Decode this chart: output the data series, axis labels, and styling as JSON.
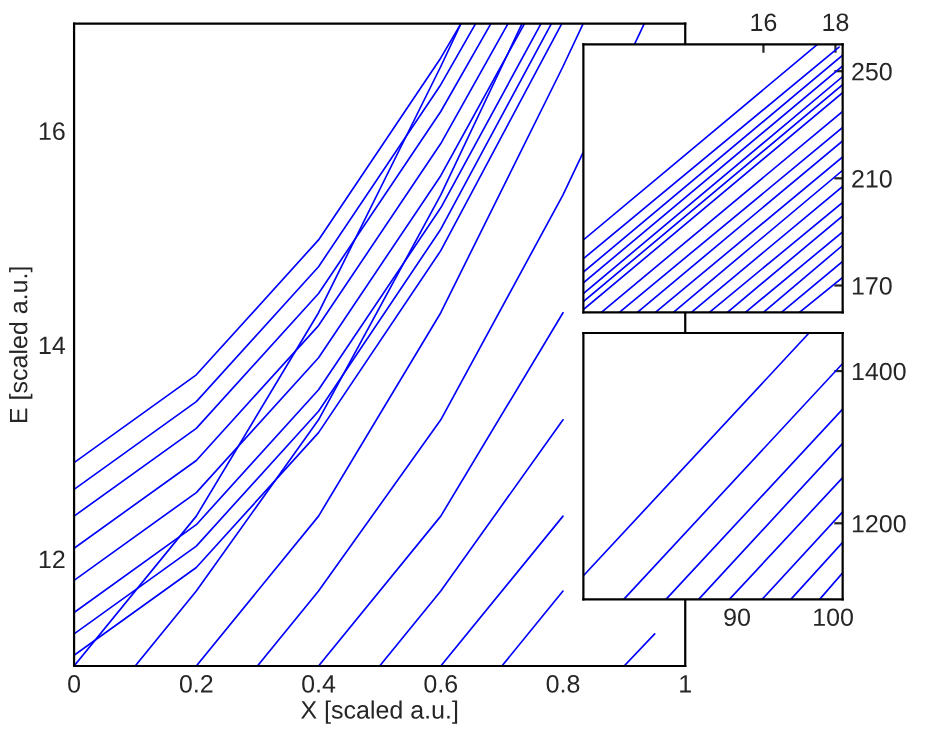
{
  "chart_data": [
    {
      "type": "line",
      "xlabel": "X [scaled a.u.]",
      "ylabel": "E [scaled a.u.]",
      "xlim": [
        0,
        1
      ],
      "ylim": [
        11,
        17
      ],
      "xticks": [
        0,
        0.2,
        0.4,
        0.6,
        0.8,
        1
      ],
      "yticks": [
        12,
        14,
        16
      ],
      "grid": false,
      "legend": false,
      "line_style": "solid",
      "series": [
        {
          "color": "#0000ff",
          "x": [
            0,
            0.2,
            0.4,
            0.6,
            0.633
          ],
          "values": [
            12.9,
            13.72,
            14.98,
            16.68,
            17
          ]
        },
        {
          "color": "#0000ff",
          "x": [
            0,
            0.2,
            0.4,
            0.6,
            0.657
          ],
          "values": [
            12.65,
            13.47,
            14.73,
            16.43,
            17
          ]
        },
        {
          "color": "#0000ff",
          "x": [
            0,
            0.2,
            0.4,
            0.6,
            0.682
          ],
          "values": [
            12.4,
            13.22,
            14.48,
            16.18,
            17
          ]
        },
        {
          "color": "#0000ff",
          "x": [
            0,
            0.2,
            0.4,
            0.6,
            0.71
          ],
          "values": [
            12.1,
            12.92,
            14.18,
            15.88,
            17
          ]
        },
        {
          "color": "#0000ff",
          "x": [
            0,
            0.2,
            0.4,
            0.6,
            0.737
          ],
          "values": [
            11.8,
            12.62,
            13.88,
            15.58,
            17
          ]
        },
        {
          "color": "#0000ff",
          "x": [
            0,
            0.2,
            0.4,
            0.6,
            0.764
          ],
          "values": [
            11.5,
            12.32,
            13.58,
            15.28,
            17
          ]
        },
        {
          "color": "#0000ff",
          "x": [
            0,
            0.2,
            0.4,
            0.6,
            0.781
          ],
          "values": [
            11.3,
            12.12,
            13.38,
            15.08,
            17
          ]
        },
        {
          "color": "#0000ff",
          "x": [
            0,
            0.2,
            0.4,
            0.6,
            0.798
          ],
          "values": [
            11.1,
            11.92,
            13.18,
            14.88,
            17
          ]
        },
        {
          "color": "#0000ff",
          "x": [
            0,
            0.2,
            0.4,
            0.6,
            0.633
          ],
          "values": [
            11,
            12.4,
            14.3,
            16.6,
            17
          ]
        },
        {
          "color": "#0000ff",
          "x": [
            0.1,
            0.2,
            0.4,
            0.6,
            0.733
          ],
          "values": [
            11,
            11.7,
            13.3,
            15.4,
            17
          ]
        },
        {
          "color": "#0000ff",
          "x": [
            0.2,
            0.4,
            0.6,
            0.8,
            0.833
          ],
          "values": [
            11,
            12.4,
            14.3,
            16.6,
            17
          ]
        },
        {
          "color": "#0000ff",
          "x": [
            0.3,
            0.4,
            0.6,
            0.8,
            0.933
          ],
          "values": [
            11,
            11.7,
            13.3,
            15.4,
            17
          ]
        },
        {
          "color": "#0000ff",
          "x": [
            0.4,
            0.6,
            0.8
          ],
          "values": [
            11,
            12.4,
            14.3
          ]
        },
        {
          "color": "#0000ff",
          "x": [
            0.5,
            0.6,
            0.8
          ],
          "values": [
            11,
            11.7,
            13.3
          ]
        },
        {
          "color": "#0000ff",
          "x": [
            0.6,
            0.8
          ],
          "values": [
            11,
            12.4
          ]
        },
        {
          "color": "#0000ff",
          "x": [
            0.7,
            0.8
          ],
          "values": [
            11,
            11.7
          ]
        },
        {
          "color": "#0000ff",
          "x": [
            0.9,
            0.95
          ],
          "values": [
            11,
            11.3
          ]
        }
      ]
    },
    {
      "type": "line",
      "xlim": [
        11,
        18.2
      ],
      "ylim": [
        160,
        260
      ],
      "xticks": [
        16,
        18
      ],
      "yticks": [
        170,
        210,
        250
      ],
      "grid": false,
      "legend": false,
      "line_style": "solid",
      "series": [
        {
          "color": "#0000ff",
          "x": [
            11,
            17.5
          ],
          "values": [
            187,
            260
          ]
        },
        {
          "color": "#0000ff",
          "x": [
            11,
            18.1
          ],
          "values": [
            180,
            259
          ]
        },
        {
          "color": "#0000ff",
          "x": [
            11,
            18.2
          ],
          "values": [
            175,
            256
          ]
        },
        {
          "color": "#0000ff",
          "x": [
            11,
            18.2
          ],
          "values": [
            171,
            252
          ]
        },
        {
          "color": "#0000ff",
          "x": [
            11,
            18.2
          ],
          "values": [
            167,
            248
          ]
        },
        {
          "color": "#0000ff",
          "x": [
            11,
            18.2
          ],
          "values": [
            164,
            245
          ]
        },
        {
          "color": "#0000ff",
          "x": [
            11,
            18.2
          ],
          "values": [
            161,
            242
          ]
        },
        {
          "color": "#0000ff",
          "x": [
            11.5,
            18.2
          ],
          "values": [
            160,
            235
          ]
        },
        {
          "color": "#0000ff",
          "x": [
            12,
            18.2
          ],
          "values": [
            160,
            229
          ]
        },
        {
          "color": "#0000ff",
          "x": [
            12.5,
            18.2
          ],
          "values": [
            160,
            224
          ]
        },
        {
          "color": "#0000ff",
          "x": [
            13,
            18.2
          ],
          "values": [
            160,
            218
          ]
        },
        {
          "color": "#0000ff",
          "x": [
            13.5,
            18.2
          ],
          "values": [
            160,
            213
          ]
        },
        {
          "color": "#0000ff",
          "x": [
            14,
            18.2
          ],
          "values": [
            160,
            207
          ]
        },
        {
          "color": "#0000ff",
          "x": [
            14.5,
            18.2
          ],
          "values": [
            160,
            201
          ]
        },
        {
          "color": "#0000ff",
          "x": [
            15,
            18.2
          ],
          "values": [
            160,
            196
          ]
        },
        {
          "color": "#0000ff",
          "x": [
            15.5,
            18.2
          ],
          "values": [
            160,
            190
          ]
        },
        {
          "color": "#0000ff",
          "x": [
            16,
            18.2
          ],
          "values": [
            160,
            185
          ]
        },
        {
          "color": "#0000ff",
          "x": [
            16.5,
            18.2
          ],
          "values": [
            160,
            179
          ]
        },
        {
          "color": "#0000ff",
          "x": [
            17,
            18.2
          ],
          "values": [
            160,
            173
          ]
        }
      ]
    },
    {
      "type": "line",
      "xlim": [
        74,
        101
      ],
      "ylim": [
        1100,
        1450
      ],
      "xticks": [
        90,
        100
      ],
      "yticks": [
        1200,
        1400
      ],
      "grid": false,
      "legend": false,
      "line_style": "solid",
      "series": [
        {
          "color": "#0000ff",
          "x": [
            74,
            97.5
          ],
          "values": [
            1131,
            1450
          ]
        },
        {
          "color": "#0000ff",
          "x": [
            78.2,
            101
          ],
          "values": [
            1100,
            1410
          ]
        },
        {
          "color": "#0000ff",
          "x": [
            82.6,
            101
          ],
          "values": [
            1100,
            1350
          ]
        },
        {
          "color": "#0000ff",
          "x": [
            86,
            101
          ],
          "values": [
            1100,
            1305
          ]
        },
        {
          "color": "#0000ff",
          "x": [
            89.2,
            101
          ],
          "values": [
            1100,
            1260
          ]
        },
        {
          "color": "#0000ff",
          "x": [
            92.6,
            101
          ],
          "values": [
            1100,
            1215
          ]
        },
        {
          "color": "#0000ff",
          "x": [
            95.6,
            101
          ],
          "values": [
            1100,
            1175
          ]
        },
        {
          "color": "#0000ff",
          "x": [
            98.6,
            101
          ],
          "values": [
            1100,
            1135
          ]
        }
      ]
    }
  ]
}
